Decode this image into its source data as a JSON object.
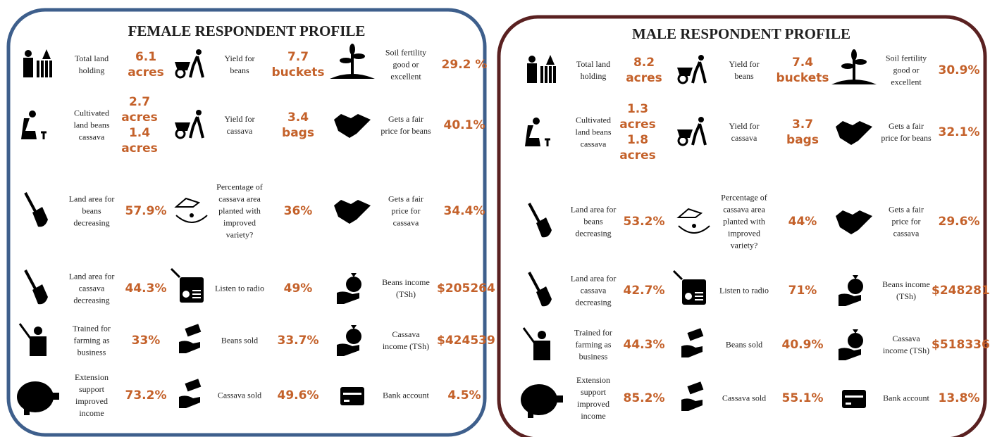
{
  "female_profile": {
    "title": "FEMALE RESPONDENT PROFILE",
    "items": [
      {
        "label": "Total land holding",
        "value": "6.1 acres"
      },
      {
        "label": "Yield for beans",
        "value": "7.7 buckets"
      },
      {
        "label": "Soil fertility good or excellent",
        "value": "29.2 %"
      },
      {
        "label": "Cultivated land beans cassava",
        "value": "2.7 acres 1.4 acres"
      },
      {
        "label": "Yield for cassava",
        "value": "3.4 bags"
      },
      {
        "label": "Gets a fair price for beans",
        "value": "40.1%"
      },
      {
        "label": "Land area for beans decreasing",
        "value": "57.9%"
      },
      {
        "label": "Percentage of cassava area planted with improved variety?",
        "value": "36%"
      },
      {
        "label": "Gets a fair price for cassava",
        "value": "34.4%"
      },
      {
        "label": "Land area for cassava decreasing",
        "value": "44.3%"
      },
      {
        "label": "Listen to radio",
        "value": "49%"
      },
      {
        "label": "Beans income (TSh)",
        "value": "$205264"
      },
      {
        "label": "Trained for farming as business",
        "value": "33%"
      },
      {
        "label": "Beans sold",
        "value": "33.7%"
      },
      {
        "label": "Cassava income (TSh)",
        "value": "$424539"
      },
      {
        "label": "Extension support improved income",
        "value": "73.2%"
      },
      {
        "label": "Cassava sold",
        "value": "49.6%"
      },
      {
        "label": "Bank account",
        "value": "4.5%"
      }
    ]
  },
  "male_profile": {
    "title": "MALE RESPONDENT PROFILE",
    "items": [
      {
        "label": "Total land holding",
        "value": "8.2 acres"
      },
      {
        "label": "Yield for beans",
        "value": "7.4 buckets"
      },
      {
        "label": "Soil fertility good or excellent",
        "value": "30.9%"
      },
      {
        "label": "Cultivated land beans cassava",
        "value": "1.3 acres 1.8 acres"
      },
      {
        "label": "Yield for cassava",
        "value": "3.7 bags"
      },
      {
        "label": "Gets a fair price for beans",
        "value": "32.1%"
      },
      {
        "label": "Land area for beans decreasing",
        "value": "53.2%"
      },
      {
        "label": "Percentage of cassava area planted with improved variety?",
        "value": "44%"
      },
      {
        "label": "Gets a fair price for cassava",
        "value": "29.6%"
      },
      {
        "label": "Land area for cassava decreasing",
        "value": "42.7%"
      },
      {
        "label": "Listen to radio",
        "value": "71%"
      },
      {
        "label": "Beans income (TSh)",
        "value": "$248281"
      },
      {
        "label": "Trained for farming as business",
        "value": "44.3%"
      },
      {
        "label": "Beans sold",
        "value": "40.9%"
      },
      {
        "label": "Cassava income (TSh)",
        "value": "$518336"
      },
      {
        "label": "Extension support improved income",
        "value": "85.2%"
      },
      {
        "label": "Cassava sold",
        "value": "55.1%"
      },
      {
        "label": "Bank account",
        "value": "13.8%"
      }
    ]
  }
}
